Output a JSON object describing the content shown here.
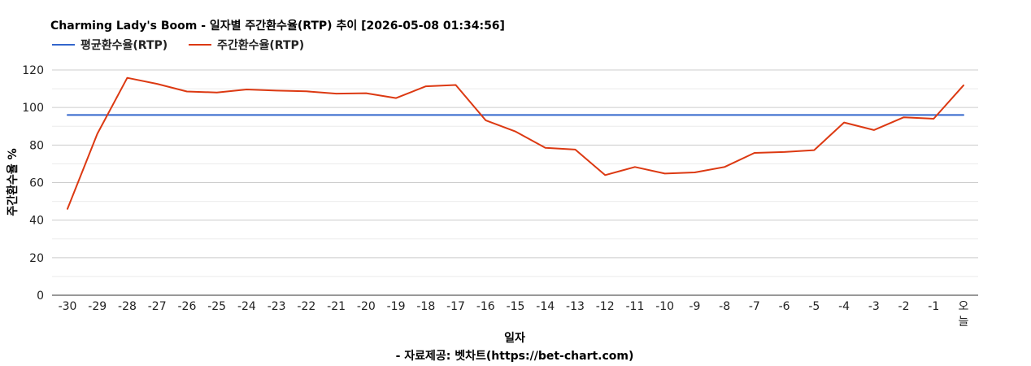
{
  "chart_data": {
    "type": "line",
    "title": "Charming Lady's Boom - 일자별 주간환수율(RTP) 추이 [2026-05-08 01:34:56]",
    "xlabel": "일자",
    "ylabel": "주간환수율 %",
    "source": "- 자료제공: 벳차트(https://bet-chart.com)",
    "ylim": [
      0,
      120
    ],
    "yticks": [
      0,
      20,
      40,
      60,
      80,
      100,
      120
    ],
    "grid": true,
    "legend_position": "top-left",
    "categories": [
      "-30",
      "-29",
      "-28",
      "-27",
      "-26",
      "-25",
      "-24",
      "-23",
      "-22",
      "-21",
      "-20",
      "-19",
      "-18",
      "-17",
      "-16",
      "-15",
      "-14",
      "-13",
      "-12",
      "-11",
      "-10",
      "-9",
      "-8",
      "-7",
      "-6",
      "-5",
      "-4",
      "-3",
      "-2",
      "-1",
      "오늘"
    ],
    "series": [
      {
        "name": "평균환수율(RTP)",
        "color": "#3366cc",
        "values": [
          96,
          96,
          96,
          96,
          96,
          96,
          96,
          96,
          96,
          96,
          96,
          96,
          96,
          96,
          96,
          96,
          96,
          96,
          96,
          96,
          96,
          96,
          96,
          96,
          96,
          96,
          96,
          96,
          96,
          96,
          96
        ]
      },
      {
        "name": "주간환수율(RTP)",
        "color": "#dc3912",
        "values": [
          46,
          86,
          115.8,
          112.6,
          108.5,
          108,
          109.6,
          109,
          108.6,
          107.4,
          107.6,
          105,
          111.3,
          112,
          93.2,
          87.2,
          78.5,
          77.6,
          64,
          68.3,
          64.8,
          65.4,
          68.3,
          75.8,
          76.3,
          77.3,
          92,
          88,
          94.8,
          94,
          111.8
        ]
      }
    ]
  }
}
